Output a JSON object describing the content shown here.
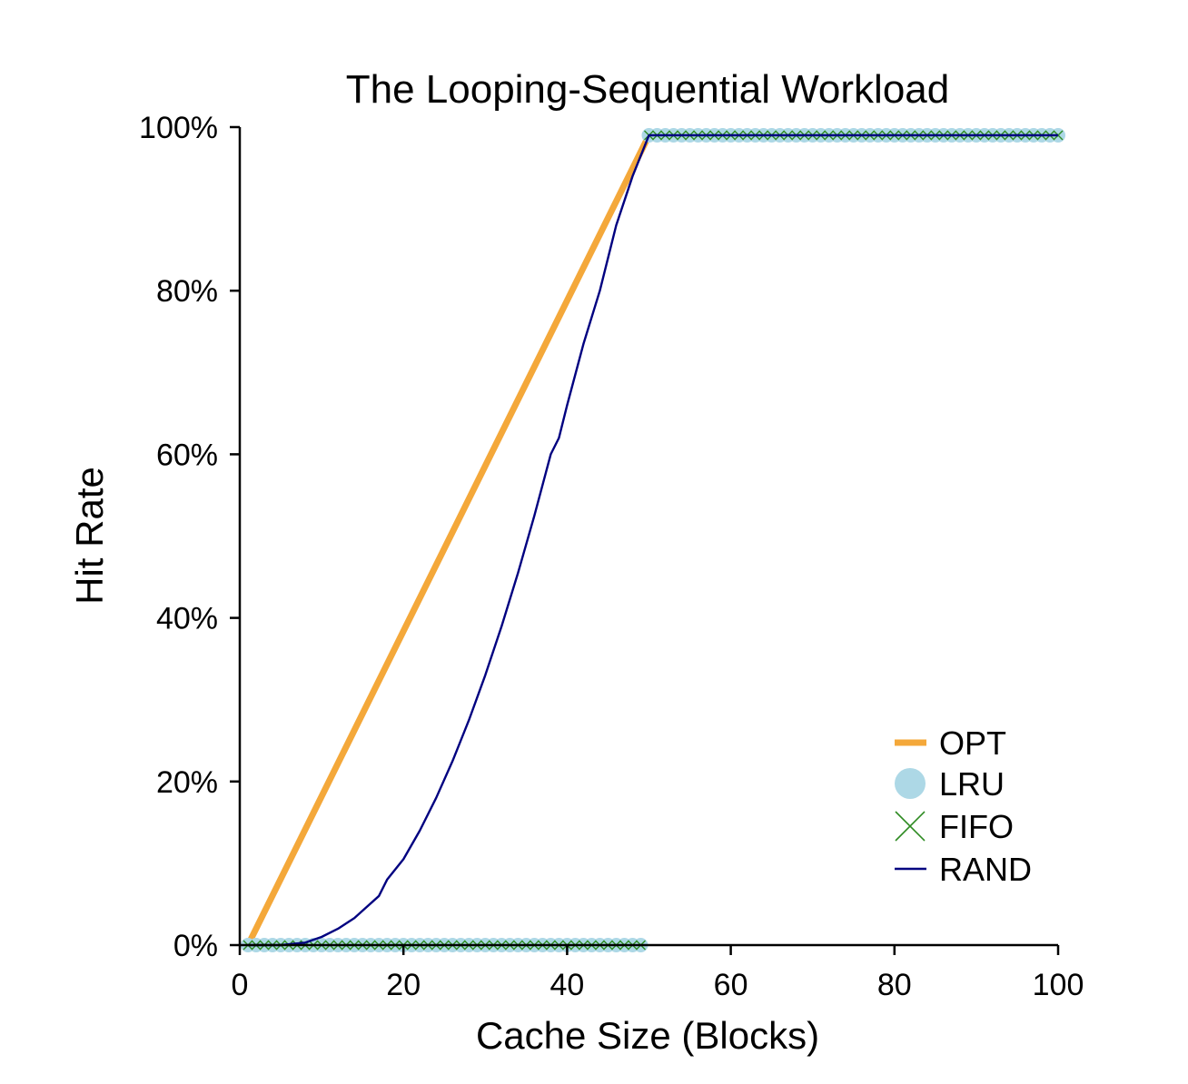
{
  "chart_data": {
    "type": "line",
    "title": "The Looping-Sequential Workload",
    "xlabel": "Cache Size (Blocks)",
    "ylabel": "Hit Rate",
    "xlim": [
      0,
      100
    ],
    "ylim": [
      0,
      100
    ],
    "x_ticks": [
      0,
      20,
      40,
      60,
      80,
      100
    ],
    "x_tick_labels": [
      "0",
      "20",
      "40",
      "60",
      "80",
      "100"
    ],
    "y_ticks": [
      0,
      20,
      40,
      60,
      80,
      100
    ],
    "y_tick_labels": [
      "0%",
      "20%",
      "40%",
      "60%",
      "80%",
      "100%"
    ],
    "grid": false,
    "legend_position": "lower-right",
    "series": [
      {
        "name": "OPT",
        "style": "line",
        "color": "#f4a83a",
        "x": [
          1,
          50,
          51,
          100
        ],
        "y": [
          0,
          99,
          99,
          99
        ]
      },
      {
        "name": "LRU",
        "style": "circle-markers",
        "color": "#add8e6",
        "x_range": [
          1,
          100
        ],
        "rule": "hit rate 0% for cache sizes 1–49, 99% for 50–100",
        "low_range": [
          1,
          49
        ],
        "low_value": 0,
        "high_range": [
          50,
          100
        ],
        "high_value": 99
      },
      {
        "name": "FIFO",
        "style": "x-markers",
        "color": "#2e8b22",
        "x_range": [
          1,
          100
        ],
        "low_range": [
          1,
          49
        ],
        "low_value": 0,
        "high_range": [
          50,
          100
        ],
        "high_value": 99
      },
      {
        "name": "RAND",
        "style": "line",
        "color": "#000080",
        "x": [
          1,
          5,
          8,
          10,
          12,
          14,
          15,
          17,
          18,
          20,
          22,
          24,
          26,
          28,
          30,
          32,
          34,
          36,
          38,
          39,
          40,
          42,
          44,
          46,
          48,
          49,
          50,
          51,
          100
        ],
        "y": [
          0,
          0,
          0.3,
          1,
          2,
          3.3,
          4.2,
          6,
          8,
          10.5,
          14,
          18,
          22.5,
          27.5,
          33,
          39,
          45.5,
          52.5,
          60,
          62,
          66,
          73.5,
          80,
          88,
          94,
          96.5,
          99,
          99,
          99
        ]
      }
    ]
  }
}
